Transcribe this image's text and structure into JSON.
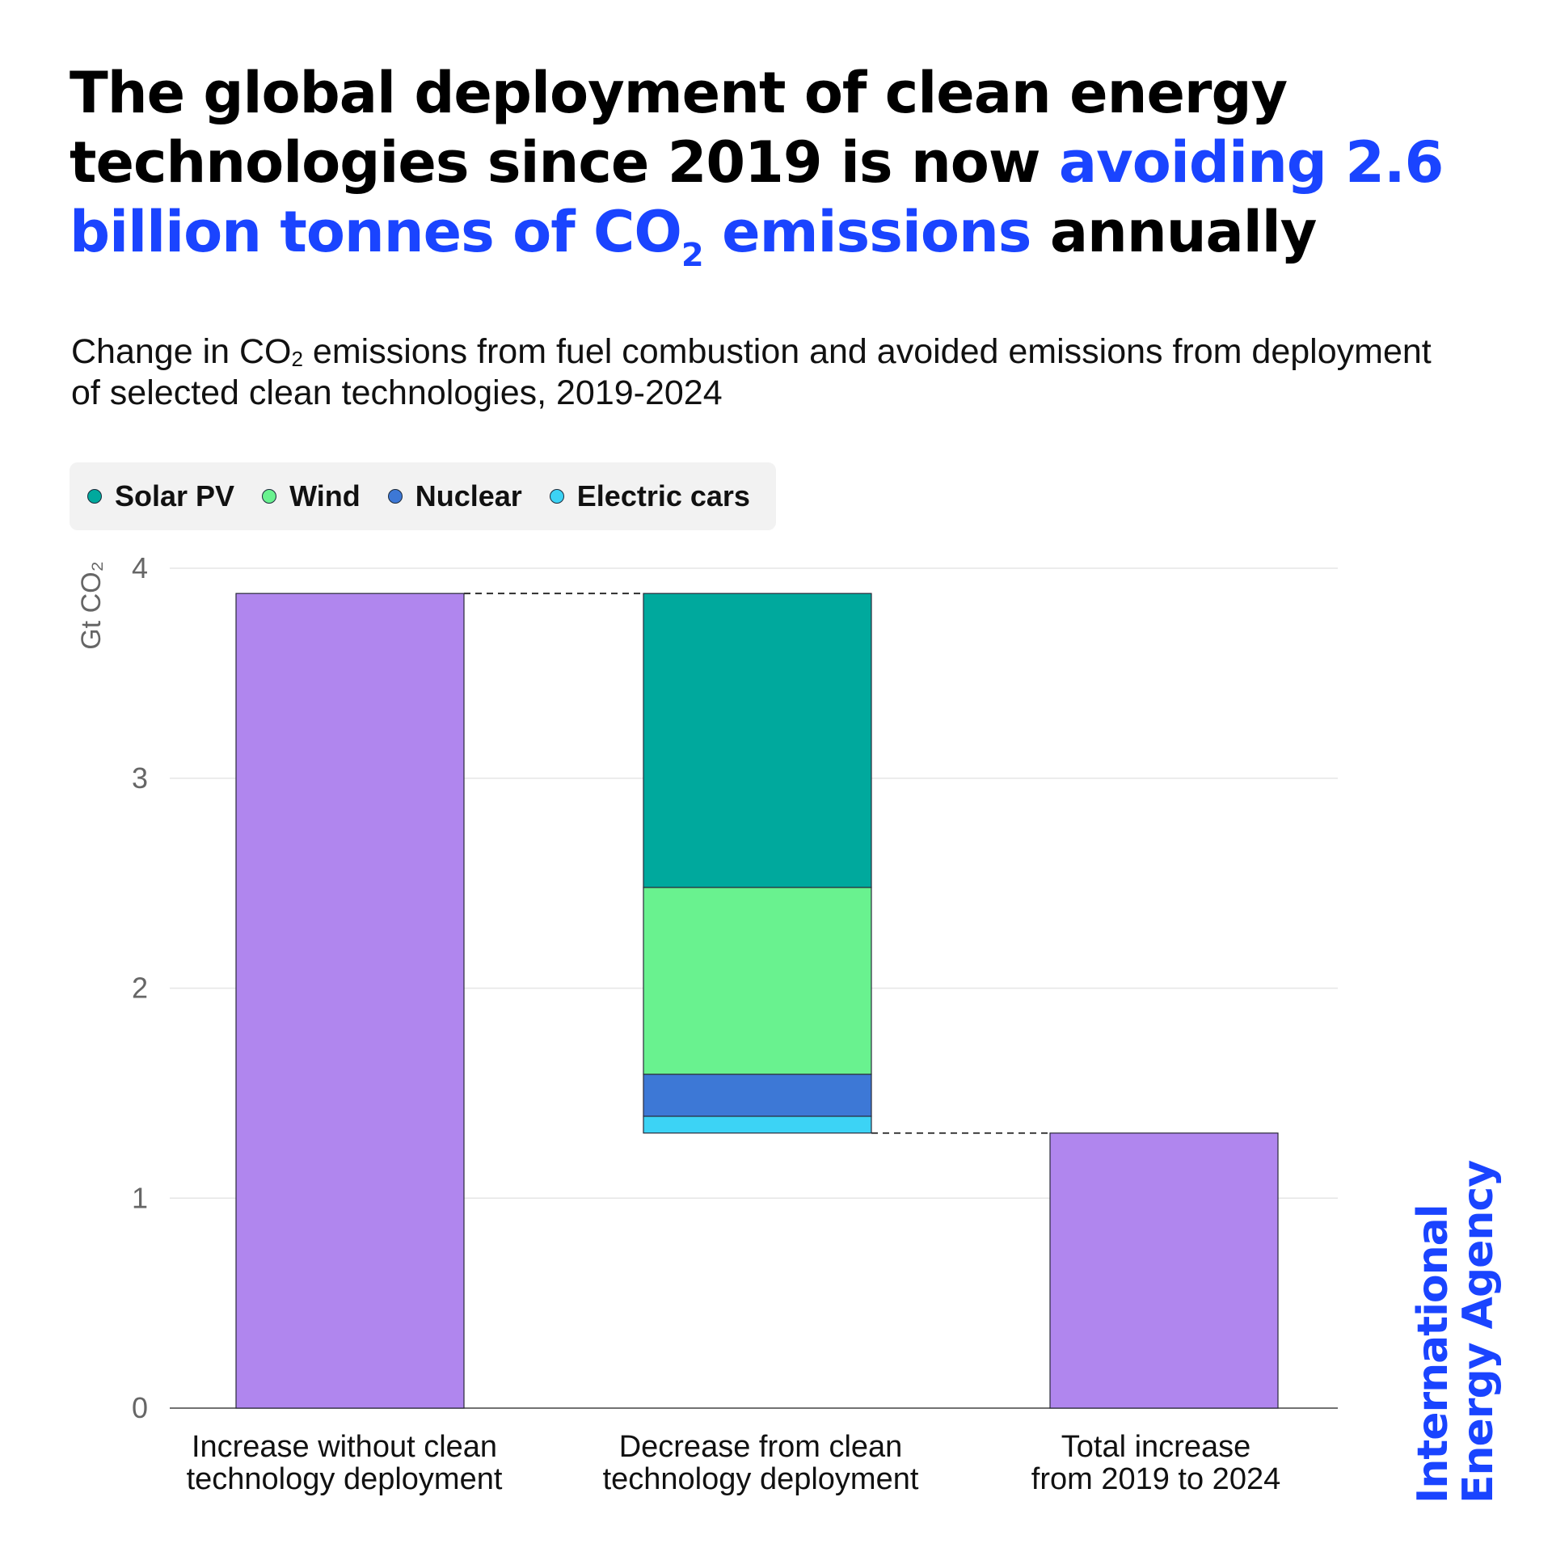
{
  "title": {
    "part1": "The global deployment of clean energy technologies since 2019 is now ",
    "highlight_pre": "avoiding 2.6 billion tonnes of CO",
    "highlight_sub": "2",
    "highlight_post": " emissions",
    "part2": " annually"
  },
  "subtitle": {
    "pre": "Change in CO",
    "sub": "2",
    "post": " emissions from fuel combustion and avoided emissions from deployment of selected clean technologies, 2019-2024"
  },
  "legend": [
    {
      "label": "Solar PV",
      "color": "#00a99d"
    },
    {
      "label": "Wind",
      "color": "#69f28f"
    },
    {
      "label": "Nuclear",
      "color": "#3d78d6"
    },
    {
      "label": "Electric cars",
      "color": "#3cd3f5"
    }
  ],
  "brand": {
    "line1": "International",
    "line2": "Energy Agency"
  },
  "chart_data": {
    "type": "bar",
    "subtype": "waterfall",
    "ylabel": "Gt CO₂",
    "ylim": [
      0,
      4
    ],
    "yticks": [
      "0",
      "1",
      "2",
      "3",
      "4"
    ],
    "categories": [
      {
        "line1": "Increase without clean",
        "line2": "technology deployment"
      },
      {
        "line1": "Decrease from clean",
        "line2": "technology deployment"
      },
      {
        "line1": "Total increase",
        "line2": "from 2019 to 2024"
      }
    ],
    "bars": [
      {
        "category_index": 0,
        "name": "Increase without clean technology deployment",
        "base": 0,
        "value": 3.88,
        "color": "#b086ee"
      },
      {
        "category_index": 1,
        "name": "Electric cars",
        "base": 1.31,
        "value": 0.08,
        "color": "#3cd3f5"
      },
      {
        "category_index": 1,
        "name": "Nuclear",
        "base": 1.39,
        "value": 0.2,
        "color": "#3d78d6"
      },
      {
        "category_index": 1,
        "name": "Wind",
        "base": 1.59,
        "value": 0.89,
        "color": "#69f28f"
      },
      {
        "category_index": 1,
        "name": "Solar PV",
        "base": 2.48,
        "value": 1.4,
        "color": "#00a99d"
      },
      {
        "category_index": 2,
        "name": "Total increase from 2019 to 2024",
        "base": 0,
        "value": 1.31,
        "color": "#b086ee"
      }
    ],
    "connectors": [
      {
        "from_index": 0,
        "to_index": 1,
        "y": 3.88
      },
      {
        "from_index": 1,
        "to_index": 2,
        "y": 1.31
      }
    ],
    "gridlines": true,
    "legend_position": "top-left"
  }
}
